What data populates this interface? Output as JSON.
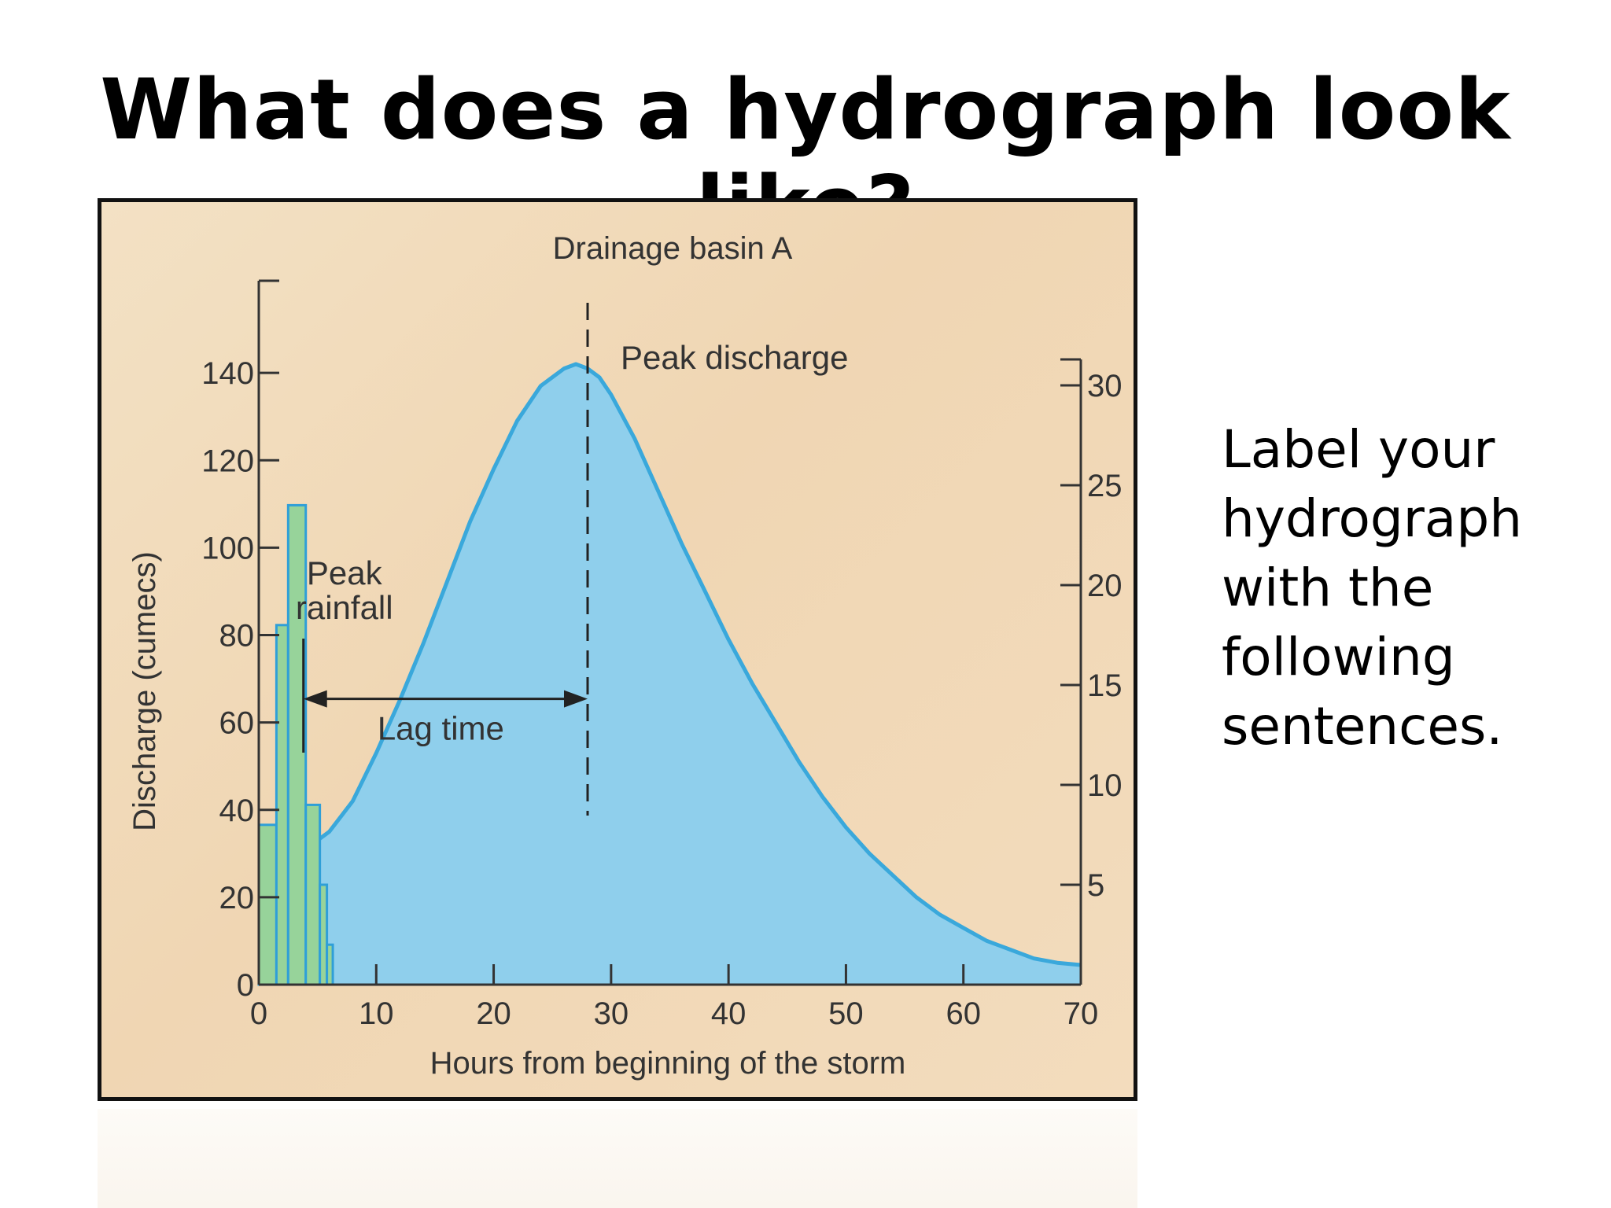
{
  "slide": {
    "title": "What does a hydrograph look like?",
    "side_text": "Label your hydrograph with the following sentences."
  },
  "colors": {
    "discharge_fill": "#8fcfec",
    "discharge_line": "#3aa8db",
    "rainfall_fill": "#97d39a",
    "rainfall_line": "#2f9fd8",
    "background": "#f2dcbc",
    "text": "#333333"
  },
  "chart_data": {
    "type": "area",
    "title": "Drainage basin A",
    "xlabel": "Hours from beginning of the storm",
    "ylabel": "Discharge (cumecs)",
    "xlim": [
      0,
      70
    ],
    "ylim_left": [
      0,
      160
    ],
    "ylim_right": [
      0,
      35
    ],
    "x_ticks": [
      0,
      10,
      20,
      30,
      40,
      50,
      60,
      70
    ],
    "y_ticks_left": [
      0,
      20,
      40,
      60,
      80,
      100,
      120,
      140
    ],
    "y_ticks_right": [
      5,
      10,
      15,
      20,
      25,
      30
    ],
    "series": [
      {
        "type": "area",
        "x": [
          0,
          1,
          2,
          3,
          4,
          5,
          6,
          8,
          10,
          12,
          14,
          16,
          18,
          20,
          22,
          24,
          26,
          27,
          28,
          29,
          30,
          32,
          34,
          36,
          38,
          40,
          42,
          44,
          46,
          48,
          50,
          52,
          54,
          56,
          58,
          60,
          62,
          64,
          66,
          68,
          70
        ],
        "values": [
          31,
          30,
          30,
          31,
          32,
          33,
          35,
          42,
          53,
          65,
          78,
          92,
          106,
          118,
          129,
          137,
          141,
          142,
          141,
          139,
          135,
          125,
          113,
          101,
          90,
          79,
          69,
          60,
          51,
          43,
          36,
          30,
          25,
          20,
          16,
          13,
          10,
          8,
          6,
          5,
          4.5
        ]
      },
      {
        "type": "bar",
        "x_start": [
          0,
          1.5,
          2.5,
          4,
          5.2,
          5.8
        ],
        "x_end": [
          1.5,
          2.5,
          4,
          5.2,
          5.8,
          6.3
        ],
        "values": [
          8,
          18,
          24,
          9,
          5,
          2
        ]
      }
    ],
    "annotations": {
      "peak_discharge": "Peak discharge",
      "peak_rainfall": "Peak rainfall",
      "lag_time": "Lag time"
    },
    "peak_discharge_x": 28,
    "peak_rainfall_x": 3.8,
    "lag_arrow_y": 60
  }
}
